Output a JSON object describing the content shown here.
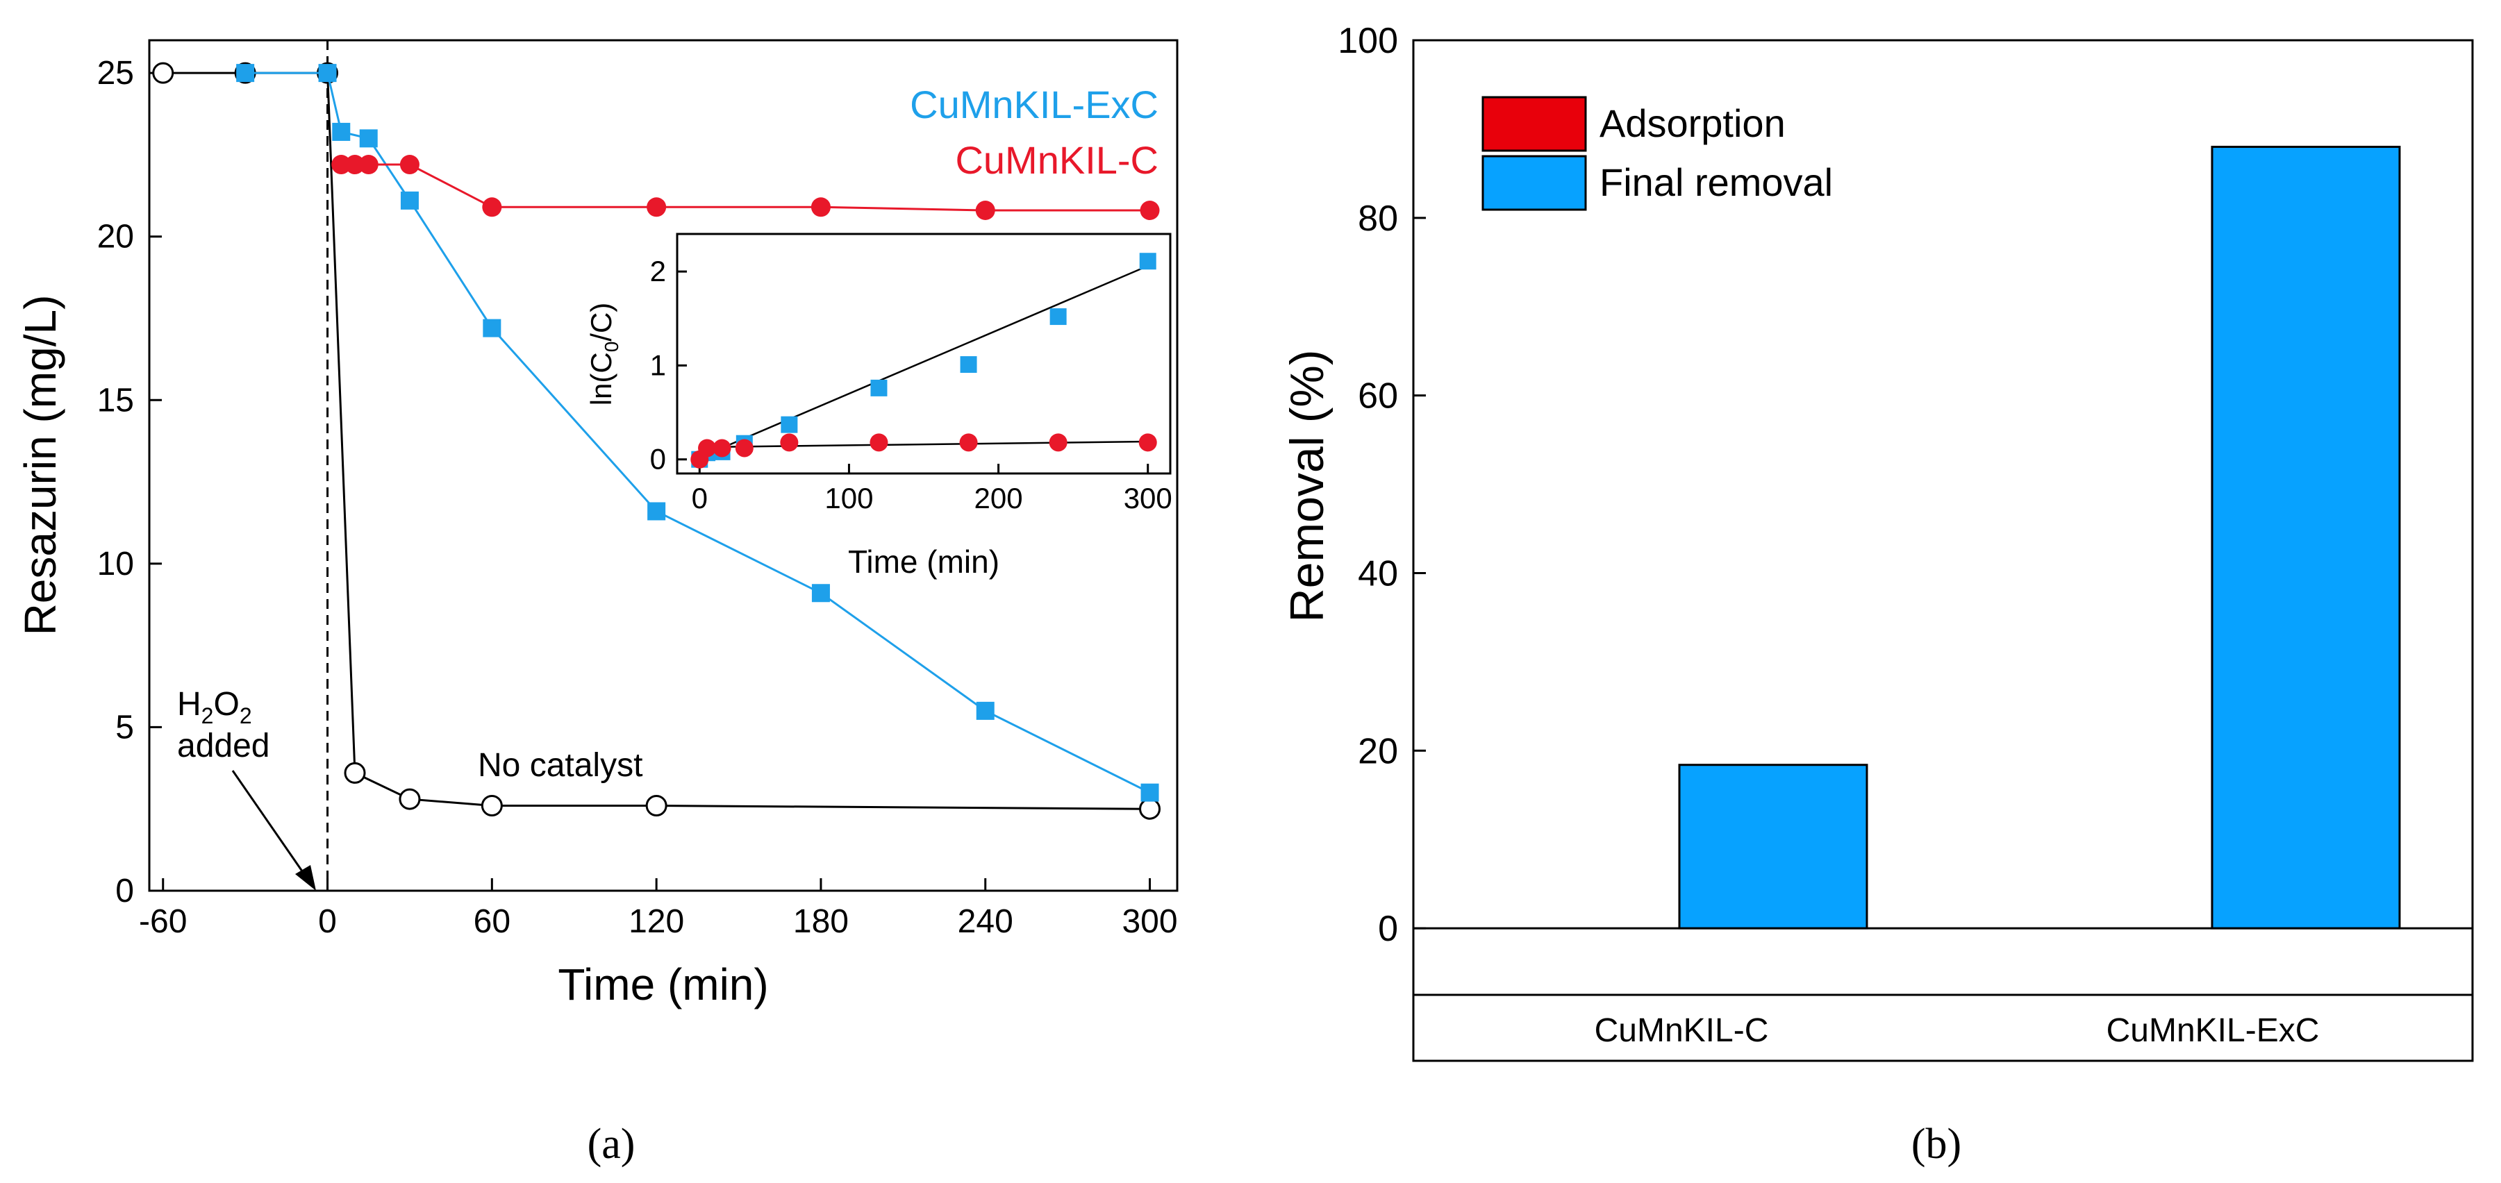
{
  "chart_data": [
    {
      "type": "line",
      "xlabel": "Time (min)",
      "ylabel": "Resazurin (mg/L)",
      "xlim": [
        -65,
        310
      ],
      "ylim": [
        0,
        26
      ],
      "xticks": [
        "-60",
        "0",
        "60",
        "120",
        "180",
        "240",
        "300"
      ],
      "yticks": [
        "0",
        "5",
        "10",
        "15",
        "20",
        "25"
      ],
      "legend_position": "top-right",
      "series": [
        {
          "name": "CuMnKIL-ExC",
          "color": "#1ea0ea",
          "marker": "square",
          "x": [
            -30,
            0,
            5,
            15,
            30,
            60,
            120,
            180,
            240,
            300
          ],
          "y": [
            25.0,
            25.0,
            23.2,
            23.0,
            21.1,
            17.2,
            11.6,
            9.1,
            5.5,
            3.0
          ]
        },
        {
          "name": "CuMnKIL-C",
          "color": "#e8182a",
          "marker": "circle",
          "x": [
            5,
            10,
            15,
            30,
            60,
            120,
            180,
            240,
            300
          ],
          "y": [
            22.2,
            22.2,
            22.2,
            22.2,
            20.9,
            20.9,
            20.9,
            20.8,
            20.8
          ]
        },
        {
          "name": "No catalyst",
          "color": "#000000",
          "marker": "open-circle",
          "x": [
            -60,
            -30,
            0,
            10,
            30,
            60,
            120,
            300
          ],
          "y": [
            25.0,
            25.0,
            25.0,
            3.6,
            2.8,
            2.6,
            2.6,
            2.5
          ]
        }
      ],
      "annotations": [
        {
          "sub_base1": "H",
          "sub1": "2",
          "sub_base2": "O",
          "sub2": "2",
          "line2": "added",
          "at_x": 0
        },
        {
          "text": "No catalyst"
        }
      ],
      "vline_x": 0,
      "inset": {
        "xlabel": "Time (min)",
        "ylabel_main": "ln(C",
        "ylabel_sub": "0",
        "ylabel_rest": "/C)",
        "xlim": [
          -15,
          315
        ],
        "ylim": [
          -0.15,
          2.4
        ],
        "xticks": [
          "0",
          "100",
          "200",
          "300"
        ],
        "yticks": [
          "0",
          "1",
          "2"
        ],
        "series": [
          {
            "color": "#1ea0ea",
            "marker": "square",
            "x": [
              0,
              5,
              15,
              30,
              60,
              120,
              180,
              240,
              300
            ],
            "y": [
              0.0,
              0.07,
              0.08,
              0.17,
              0.37,
              0.76,
              1.01,
              1.52,
              2.11
            ],
            "fit": [
              [
                0,
                0.02
              ],
              [
                300,
                2.06
              ]
            ]
          },
          {
            "color": "#e8182a",
            "marker": "circle",
            "x": [
              0,
              5,
              15,
              30,
              60,
              120,
              180,
              240,
              300
            ],
            "y": [
              0.0,
              0.12,
              0.12,
              0.12,
              0.18,
              0.18,
              0.18,
              0.18,
              0.18
            ],
            "fit": [
              [
                0,
                0.13
              ],
              [
                300,
                0.19
              ]
            ]
          }
        ]
      }
    },
    {
      "type": "bar",
      "ylabel": "Removal (%)",
      "ylim": [
        -7.5,
        100
      ],
      "yticks": [
        "0",
        "20",
        "40",
        "60",
        "80",
        "100"
      ],
      "categories": [
        "CuMnKIL-C",
        "CuMnKIL-ExC"
      ],
      "legend_position": "top-left",
      "series": [
        {
          "name": "Adsorption",
          "color": "#e8000b",
          "values": [
            0,
            0
          ]
        },
        {
          "name": "Final removal",
          "color": "#07a2ff",
          "values": [
            18.4,
            88.0
          ]
        }
      ]
    }
  ],
  "panel_labels": [
    "(a)",
    "(b)"
  ]
}
